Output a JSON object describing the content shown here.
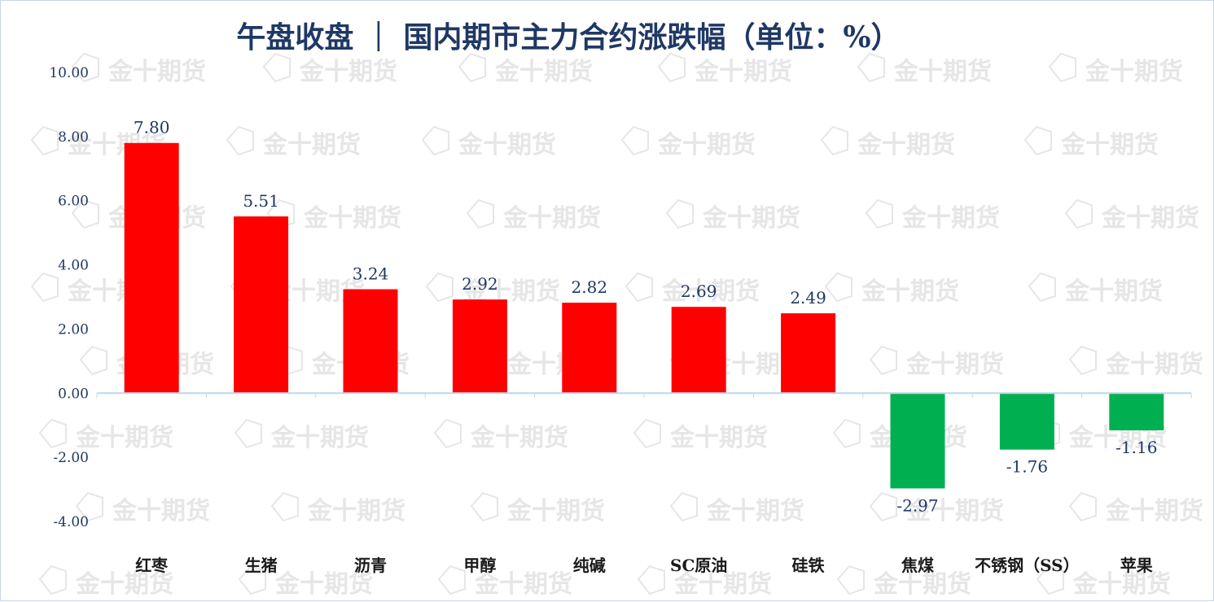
{
  "watermark": {
    "text": "金十期货",
    "color": "#e6e6e6"
  },
  "colors": {
    "positive": "#ff0000",
    "negative": "#00b050",
    "title": "#1f3864",
    "axis_text": "#1f3864",
    "axis_line": "#bdd7ee"
  },
  "chart_data": {
    "type": "bar",
    "title": "午盘收盘 ｜ 国内期市主力合约涨跌幅（单位：%）",
    "xlabel": "",
    "ylabel": "",
    "ylim": [
      -4,
      10
    ],
    "yticks": [
      "10.00",
      "8.00",
      "6.00",
      "4.00",
      "2.00",
      "0.00",
      "-2.00",
      "-4.00"
    ],
    "ytick_values": [
      10,
      8,
      6,
      4,
      2,
      0,
      -2,
      -4
    ],
    "grid": false,
    "legend": "none",
    "categories": [
      "红枣",
      "生猪",
      "沥青",
      "甲醇",
      "纯碱",
      "SC原油",
      "硅铁",
      "焦煤",
      "不锈钢（SS）",
      "苹果"
    ],
    "values": [
      7.8,
      5.51,
      3.24,
      2.92,
      2.82,
      2.69,
      2.49,
      -2.97,
      -1.76,
      -1.16
    ],
    "value_labels": [
      "7.80",
      "5.51",
      "3.24",
      "2.92",
      "2.82",
      "2.69",
      "2.49",
      "-2.97",
      "-1.76",
      "-1.16"
    ]
  }
}
